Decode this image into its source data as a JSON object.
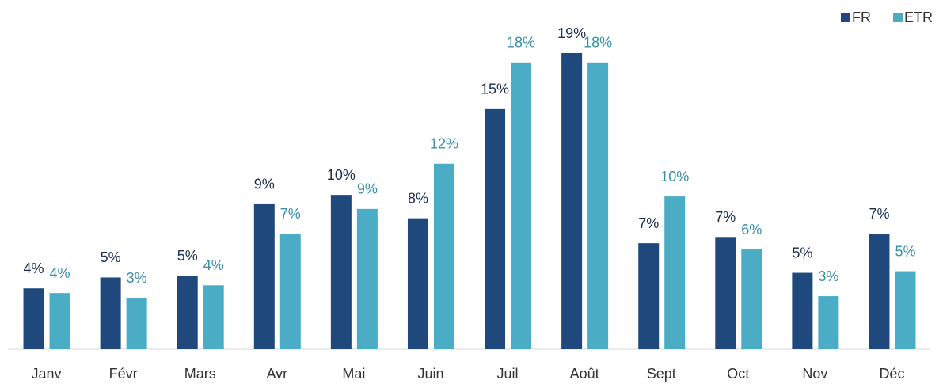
{
  "chart_data": {
    "type": "bar",
    "categories": [
      "Janv",
      "Févr",
      "Mars",
      "Avr",
      "Mai",
      "Juin",
      "Juil",
      "Août",
      "Sept",
      "Oct",
      "Nov",
      "Déc"
    ],
    "series": [
      {
        "name": "FR",
        "color": "#1f497d",
        "label_color": "#1b2e4f",
        "values": [
          3.9,
          4.6,
          4.7,
          9.3,
          9.9,
          8.4,
          15.4,
          19,
          6.8,
          7.2,
          4.9,
          7.4
        ],
        "value_labels": [
          "4%",
          "5%",
          "5%",
          "9%",
          "10%",
          "8%",
          "15%",
          "19%",
          "7%",
          "7%",
          "5%",
          "7%"
        ]
      },
      {
        "name": "ETR",
        "color": "#4bacc6",
        "label_color": "#3a8fa8",
        "values": [
          3.6,
          3.3,
          4.1,
          7.4,
          9.0,
          11.9,
          18.4,
          18.4,
          9.8,
          6.4,
          3.4,
          5.0
        ],
        "value_labels": [
          "4%",
          "3%",
          "4%",
          "7%",
          "9%",
          "12%",
          "18%",
          "18%",
          "10%",
          "6%",
          "3%",
          "5%"
        ]
      }
    ],
    "legend": "top-right"
  }
}
